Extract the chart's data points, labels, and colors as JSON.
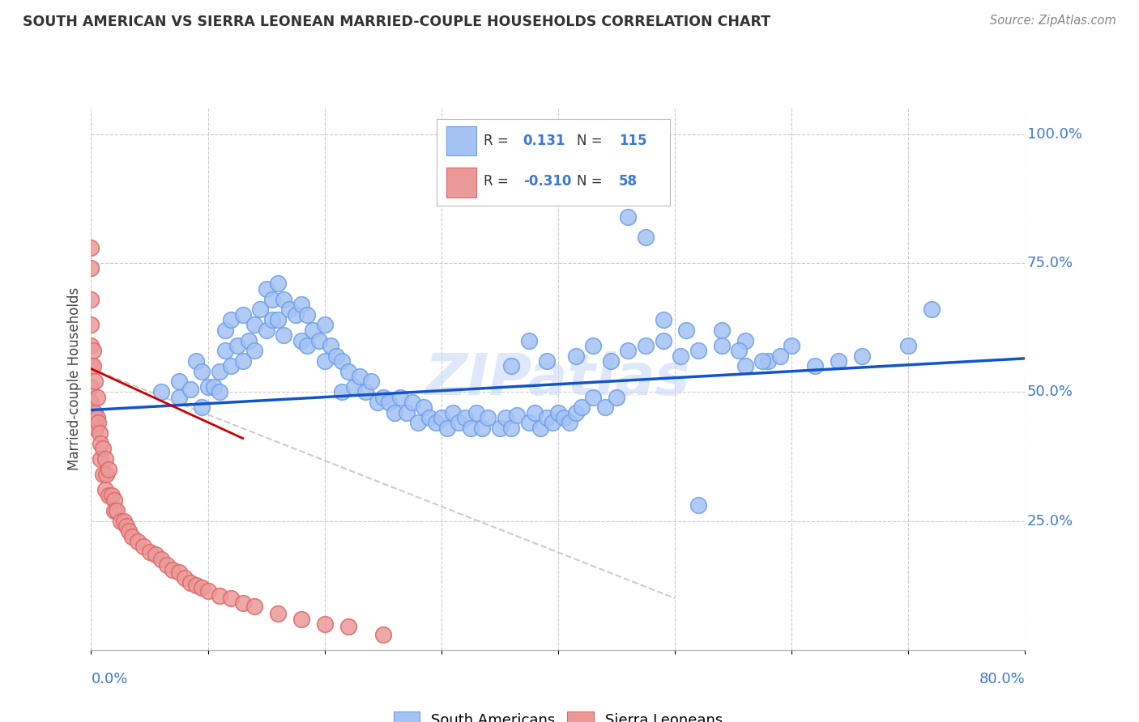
{
  "title": "SOUTH AMERICAN VS SIERRA LEONEAN MARRIED-COUPLE HOUSEHOLDS CORRELATION CHART",
  "source": "Source: ZipAtlas.com",
  "ylabel": "Married-couple Households",
  "xlim": [
    0.0,
    0.8
  ],
  "ylim": [
    0.0,
    1.05
  ],
  "R_blue": 0.131,
  "N_blue": 115,
  "R_pink": -0.31,
  "N_pink": 58,
  "blue_color": "#a4c2f4",
  "blue_edge": "#6d9eeb",
  "pink_color": "#ea9999",
  "pink_edge": "#e06666",
  "trendline_blue": "#1155cc",
  "trendline_pink": "#cc0000",
  "trendline_gray": "#cccccc",
  "watermark": "ZIPatlas",
  "watermark_color": "#c9daf8",
  "legend_labels": [
    "South Americans",
    "Sierra Leoneans"
  ],
  "ytick_vals": [
    1.0,
    0.75,
    0.5,
    0.25
  ],
  "ytick_labels": [
    "100.0%",
    "75.0%",
    "50.0%",
    "25.0%"
  ],
  "xtick_left": "0.0%",
  "xtick_right": "80.0%",
  "grid_color": "#cccccc",
  "blue_trend_start_x": 0.0,
  "blue_trend_start_y": 0.465,
  "blue_trend_end_x": 0.8,
  "blue_trend_end_y": 0.565,
  "pink_trend_start_x": 0.0,
  "pink_trend_start_y": 0.545,
  "pink_trend_end_x": 0.13,
  "pink_trend_end_y": 0.41,
  "gray_trend_end_x": 0.5,
  "gray_trend_end_y": 0.1,
  "blue_x": [
    0.06,
    0.075,
    0.075,
    0.085,
    0.09,
    0.095,
    0.095,
    0.1,
    0.105,
    0.11,
    0.11,
    0.115,
    0.115,
    0.12,
    0.12,
    0.125,
    0.13,
    0.13,
    0.135,
    0.14,
    0.14,
    0.145,
    0.15,
    0.15,
    0.155,
    0.155,
    0.16,
    0.16,
    0.165,
    0.165,
    0.17,
    0.175,
    0.18,
    0.18,
    0.185,
    0.185,
    0.19,
    0.195,
    0.2,
    0.2,
    0.205,
    0.21,
    0.215,
    0.215,
    0.22,
    0.225,
    0.23,
    0.235,
    0.24,
    0.245,
    0.25,
    0.255,
    0.26,
    0.265,
    0.27,
    0.275,
    0.28,
    0.285,
    0.29,
    0.295,
    0.3,
    0.305,
    0.31,
    0.315,
    0.32,
    0.325,
    0.33,
    0.335,
    0.34,
    0.35,
    0.355,
    0.36,
    0.365,
    0.375,
    0.38,
    0.385,
    0.39,
    0.395,
    0.4,
    0.405,
    0.41,
    0.415,
    0.42,
    0.43,
    0.44,
    0.45,
    0.46,
    0.475,
    0.49,
    0.51,
    0.52,
    0.54,
    0.56,
    0.58,
    0.6,
    0.62,
    0.64,
    0.66,
    0.7,
    0.72,
    0.36,
    0.375,
    0.39,
    0.415,
    0.43,
    0.445,
    0.46,
    0.475,
    0.49,
    0.505,
    0.52,
    0.54,
    0.555,
    0.56,
    0.575,
    0.59
  ],
  "blue_y": [
    0.5,
    0.52,
    0.49,
    0.505,
    0.56,
    0.54,
    0.47,
    0.51,
    0.51,
    0.54,
    0.5,
    0.62,
    0.58,
    0.64,
    0.55,
    0.59,
    0.65,
    0.56,
    0.6,
    0.63,
    0.58,
    0.66,
    0.7,
    0.62,
    0.68,
    0.64,
    0.71,
    0.64,
    0.68,
    0.61,
    0.66,
    0.65,
    0.67,
    0.6,
    0.65,
    0.59,
    0.62,
    0.6,
    0.63,
    0.56,
    0.59,
    0.57,
    0.56,
    0.5,
    0.54,
    0.51,
    0.53,
    0.5,
    0.52,
    0.48,
    0.49,
    0.48,
    0.46,
    0.49,
    0.46,
    0.48,
    0.44,
    0.47,
    0.45,
    0.44,
    0.45,
    0.43,
    0.46,
    0.44,
    0.45,
    0.43,
    0.46,
    0.43,
    0.45,
    0.43,
    0.45,
    0.43,
    0.455,
    0.44,
    0.46,
    0.43,
    0.45,
    0.44,
    0.46,
    0.45,
    0.44,
    0.46,
    0.47,
    0.49,
    0.47,
    0.49,
    0.84,
    0.8,
    0.64,
    0.62,
    0.28,
    0.62,
    0.6,
    0.56,
    0.59,
    0.55,
    0.56,
    0.57,
    0.59,
    0.66,
    0.55,
    0.6,
    0.56,
    0.57,
    0.59,
    0.56,
    0.58,
    0.59,
    0.6,
    0.57,
    0.58,
    0.59,
    0.58,
    0.55,
    0.56,
    0.57
  ],
  "pink_x": [
    0.0,
    0.0,
    0.0,
    0.0,
    0.0,
    0.0,
    0.0,
    0.0,
    0.0,
    0.002,
    0.002,
    0.003,
    0.003,
    0.004,
    0.005,
    0.005,
    0.006,
    0.007,
    0.008,
    0.008,
    0.01,
    0.01,
    0.012,
    0.012,
    0.013,
    0.015,
    0.015,
    0.018,
    0.02,
    0.02,
    0.022,
    0.025,
    0.028,
    0.03,
    0.032,
    0.035,
    0.04,
    0.045,
    0.05,
    0.055,
    0.06,
    0.065,
    0.07,
    0.075,
    0.08,
    0.085,
    0.09,
    0.095,
    0.1,
    0.11,
    0.12,
    0.13,
    0.14,
    0.16,
    0.18,
    0.2,
    0.22,
    0.25
  ],
  "pink_y": [
    0.78,
    0.74,
    0.68,
    0.63,
    0.59,
    0.55,
    0.51,
    0.48,
    0.45,
    0.58,
    0.55,
    0.52,
    0.46,
    0.43,
    0.49,
    0.45,
    0.44,
    0.42,
    0.4,
    0.37,
    0.39,
    0.34,
    0.37,
    0.31,
    0.34,
    0.35,
    0.3,
    0.3,
    0.29,
    0.27,
    0.27,
    0.25,
    0.25,
    0.24,
    0.23,
    0.22,
    0.21,
    0.2,
    0.19,
    0.185,
    0.175,
    0.165,
    0.155,
    0.15,
    0.14,
    0.13,
    0.125,
    0.12,
    0.115,
    0.105,
    0.1,
    0.09,
    0.085,
    0.07,
    0.06,
    0.05,
    0.045,
    0.03
  ]
}
